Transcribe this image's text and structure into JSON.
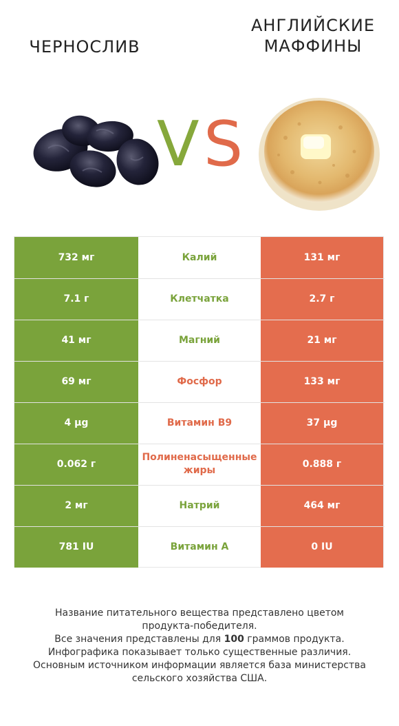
{
  "header": {
    "left_title": "ЧЕРНОСЛИВ",
    "right_title_line1": "АНГЛИЙСКИЕ",
    "right_title_line2": "МАФФИНЫ",
    "vs_v": "V",
    "vs_s": "S"
  },
  "colors": {
    "left_food": "#7aa33b",
    "right_food": "#e46d4e"
  },
  "images": {
    "left": "prunes-image",
    "right": "english-muffin-image"
  },
  "table": {
    "rows": [
      {
        "left": "732 мг",
        "nutrient": "Калий",
        "right": "131 мг",
        "winner": "left"
      },
      {
        "left": "7.1 г",
        "nutrient": "Клетчатка",
        "right": "2.7 г",
        "winner": "left"
      },
      {
        "left": "41 мг",
        "nutrient": "Магний",
        "right": "21 мг",
        "winner": "left"
      },
      {
        "left": "69 мг",
        "nutrient": "Фосфор",
        "right": "133 мг",
        "winner": "right"
      },
      {
        "left": "4 µg",
        "nutrient": "Витамин B9",
        "right": "37 µg",
        "winner": "right"
      },
      {
        "left": "0.062 г",
        "nutrient": "Полиненасыщенные жиры",
        "right": "0.888 г",
        "winner": "right"
      },
      {
        "left": "2 мг",
        "nutrient": "Натрий",
        "right": "464 мг",
        "winner": "left"
      },
      {
        "left": "781 IU",
        "nutrient": "Витамин A",
        "right": "0 IU",
        "winner": "left"
      }
    ]
  },
  "footer": {
    "line1": "Название питательного вещества представлено цветом",
    "line2": "продукта-победителя.",
    "line3_pre": "Все значения представлены для ",
    "line3_bold": "100",
    "line3_post": " граммов продукта.",
    "line4": "Инфографика показывает только существенные различия.",
    "line5": "Основным источником информации является база министерства",
    "line6": "сельского хозяйства США."
  }
}
